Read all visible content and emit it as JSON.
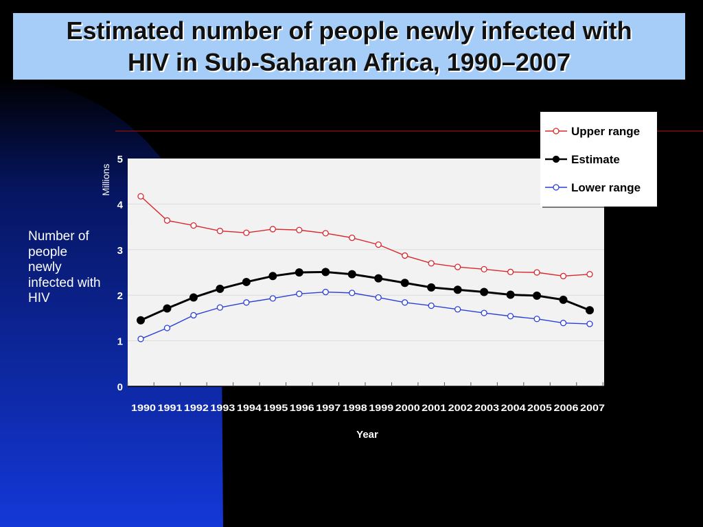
{
  "slide": {
    "title_line1": "Estimated number of people newly infected with",
    "title_line2": "HIV in Sub-Saharan Africa, 1990–2007",
    "side_label": "Number of people newly infected with HIV"
  },
  "colors": {
    "title_bg": "#a6cdf7",
    "background": "#000000",
    "upper": "#d9262c",
    "estimate": "#000000",
    "lower": "#2a3fd6",
    "plot_bg": "#f2f2f2",
    "accent_line": "#7a1010"
  },
  "chart_data": {
    "type": "line",
    "title": "",
    "xlabel": "Year",
    "ylabel": "Millions",
    "ylim": [
      0,
      5
    ],
    "yticks": [
      0,
      1,
      2,
      3,
      4,
      5
    ],
    "grid": true,
    "legend_position": "top-right",
    "x": [
      "1990",
      "1991",
      "1992",
      "1993",
      "1994",
      "1995",
      "1996",
      "1997",
      "1998",
      "1999",
      "2000",
      "2001",
      "2002",
      "2003",
      "2004",
      "2005",
      "2006",
      "2007"
    ],
    "series": [
      {
        "name": "Upper range",
        "key": "upper",
        "marker": "open-circle",
        "values": [
          4.17,
          3.64,
          3.53,
          3.41,
          3.37,
          3.45,
          3.43,
          3.36,
          3.26,
          3.11,
          2.87,
          2.7,
          2.62,
          2.57,
          2.51,
          2.5,
          2.42,
          2.46
        ]
      },
      {
        "name": "Estimate",
        "key": "estimate",
        "marker": "filled-circle",
        "values": [
          1.45,
          1.71,
          1.95,
          2.14,
          2.29,
          2.42,
          2.5,
          2.51,
          2.46,
          2.37,
          2.27,
          2.17,
          2.12,
          2.07,
          2.01,
          1.99,
          1.9,
          1.67
        ]
      },
      {
        "name": "Lower range",
        "key": "lower",
        "marker": "open-circle",
        "values": [
          1.04,
          1.28,
          1.56,
          1.73,
          1.84,
          1.93,
          2.03,
          2.07,
          2.05,
          1.95,
          1.84,
          1.77,
          1.69,
          1.61,
          1.54,
          1.48,
          1.39,
          1.37
        ]
      }
    ]
  }
}
